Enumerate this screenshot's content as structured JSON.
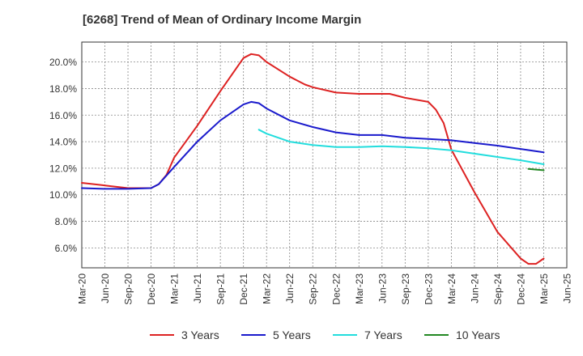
{
  "chart_data": {
    "type": "line",
    "title": "[6268]  Trend of Mean of Ordinary Income Margin",
    "xlabel": "",
    "ylabel": "",
    "x_ticks": [
      "Mar-20",
      "Jun-20",
      "Sep-20",
      "Dec-20",
      "Mar-21",
      "Jun-21",
      "Sep-21",
      "Dec-21",
      "Mar-22",
      "Jun-22",
      "Sep-22",
      "Dec-22",
      "Mar-23",
      "Jun-23",
      "Sep-23",
      "Dec-23",
      "Mar-24",
      "Jun-24",
      "Sep-24",
      "Dec-24",
      "Mar-25",
      "Jun-25"
    ],
    "y_ticks": [
      "6.0%",
      "8.0%",
      "10.0%",
      "12.0%",
      "14.0%",
      "16.0%",
      "18.0%",
      "20.0%"
    ],
    "ylim": [
      4.5,
      21.5
    ],
    "grid": true,
    "legend_position": "bottom",
    "series": [
      {
        "name": "3 Years",
        "color": "#dd2222",
        "x": [
          "2020-03",
          "2020-06",
          "2020-09",
          "2020-12",
          "2021-01",
          "2021-02",
          "2021-03",
          "2021-06",
          "2021-09",
          "2021-12",
          "2022-01",
          "2022-02",
          "2022-03",
          "2022-06",
          "2022-07",
          "2022-08",
          "2022-09",
          "2022-12",
          "2023-03",
          "2023-06",
          "2023-07",
          "2023-09",
          "2023-12",
          "2024-01",
          "2024-02",
          "2024-03",
          "2024-06",
          "2024-09",
          "2024-12",
          "2025-01",
          "2025-02",
          "2025-03"
        ],
        "values": [
          10.9,
          10.7,
          10.5,
          10.5,
          10.8,
          11.5,
          12.8,
          15.2,
          17.8,
          20.3,
          20.6,
          20.5,
          20.0,
          18.9,
          18.6,
          18.3,
          18.1,
          17.7,
          17.6,
          17.6,
          17.6,
          17.3,
          17.0,
          16.4,
          15.4,
          13.4,
          10.2,
          7.2,
          5.2,
          4.8,
          4.8,
          5.2
        ]
      },
      {
        "name": "5 Years",
        "color": "#1a1acc",
        "x": [
          "2020-03",
          "2020-06",
          "2020-09",
          "2020-12",
          "2021-01",
          "2021-03",
          "2021-06",
          "2021-09",
          "2021-12",
          "2022-01",
          "2022-02",
          "2022-03",
          "2022-06",
          "2022-09",
          "2022-12",
          "2023-03",
          "2023-06",
          "2023-09",
          "2023-12",
          "2024-03",
          "2024-06",
          "2024-09",
          "2024-12",
          "2025-03"
        ],
        "values": [
          10.5,
          10.45,
          10.45,
          10.5,
          10.8,
          12.1,
          14.0,
          15.6,
          16.8,
          17.0,
          16.9,
          16.5,
          15.6,
          15.1,
          14.7,
          14.5,
          14.5,
          14.3,
          14.2,
          14.1,
          13.9,
          13.7,
          13.45,
          13.2
        ]
      },
      {
        "name": "7 Years",
        "color": "#22dddd",
        "x": [
          "2022-02",
          "2022-03",
          "2022-06",
          "2022-09",
          "2022-12",
          "2023-03",
          "2023-06",
          "2023-09",
          "2023-12",
          "2024-03",
          "2024-06",
          "2024-09",
          "2024-12",
          "2025-03"
        ],
        "values": [
          14.9,
          14.6,
          14.0,
          13.75,
          13.6,
          13.6,
          13.65,
          13.6,
          13.5,
          13.35,
          13.1,
          12.85,
          12.6,
          12.3
        ]
      },
      {
        "name": "10 Years",
        "color": "#228822",
        "x": [
          "2025-01",
          "2025-02",
          "2025-03"
        ],
        "values": [
          11.95,
          11.9,
          11.85
        ]
      }
    ]
  }
}
